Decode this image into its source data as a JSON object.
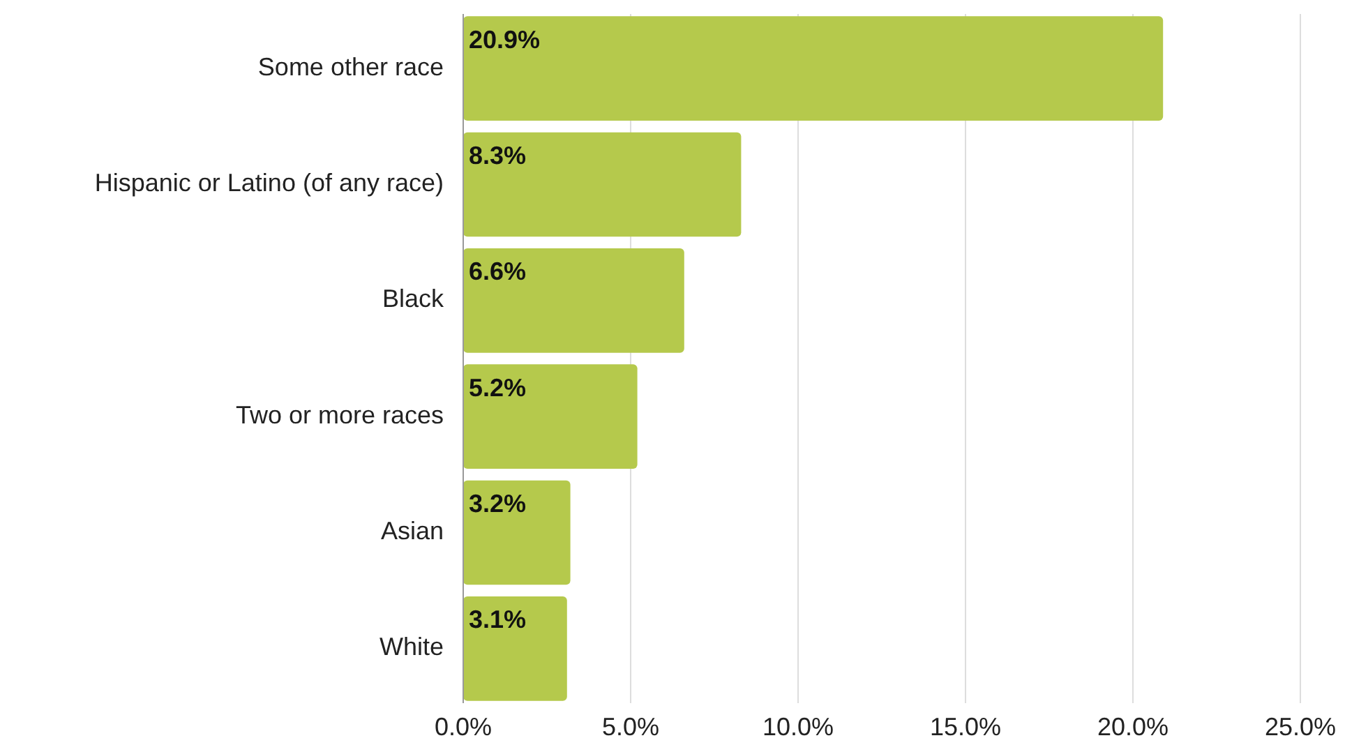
{
  "chart_data": {
    "type": "bar",
    "orientation": "horizontal",
    "categories": [
      "Some other race",
      "Hispanic or Latino (of any race)",
      "Black",
      "Two or more races",
      "Asian",
      "White"
    ],
    "values": [
      20.9,
      8.3,
      6.6,
      5.2,
      3.2,
      3.1
    ],
    "value_labels": [
      "20.9%",
      "8.3%",
      "6.6%",
      "5.2%",
      "3.2%",
      "3.1%"
    ],
    "color": "#b5c94c",
    "xlim": [
      0,
      25
    ],
    "xticks": [
      {
        "value": 0,
        "label": "0.0%"
      },
      {
        "value": 5,
        "label": "5.0%"
      },
      {
        "value": 10,
        "label": "10.0%"
      },
      {
        "value": 15,
        "label": "15.0%"
      },
      {
        "value": 20,
        "label": "20.0%"
      },
      {
        "value": 25,
        "label": "25.0%"
      }
    ],
    "grid": "x"
  }
}
